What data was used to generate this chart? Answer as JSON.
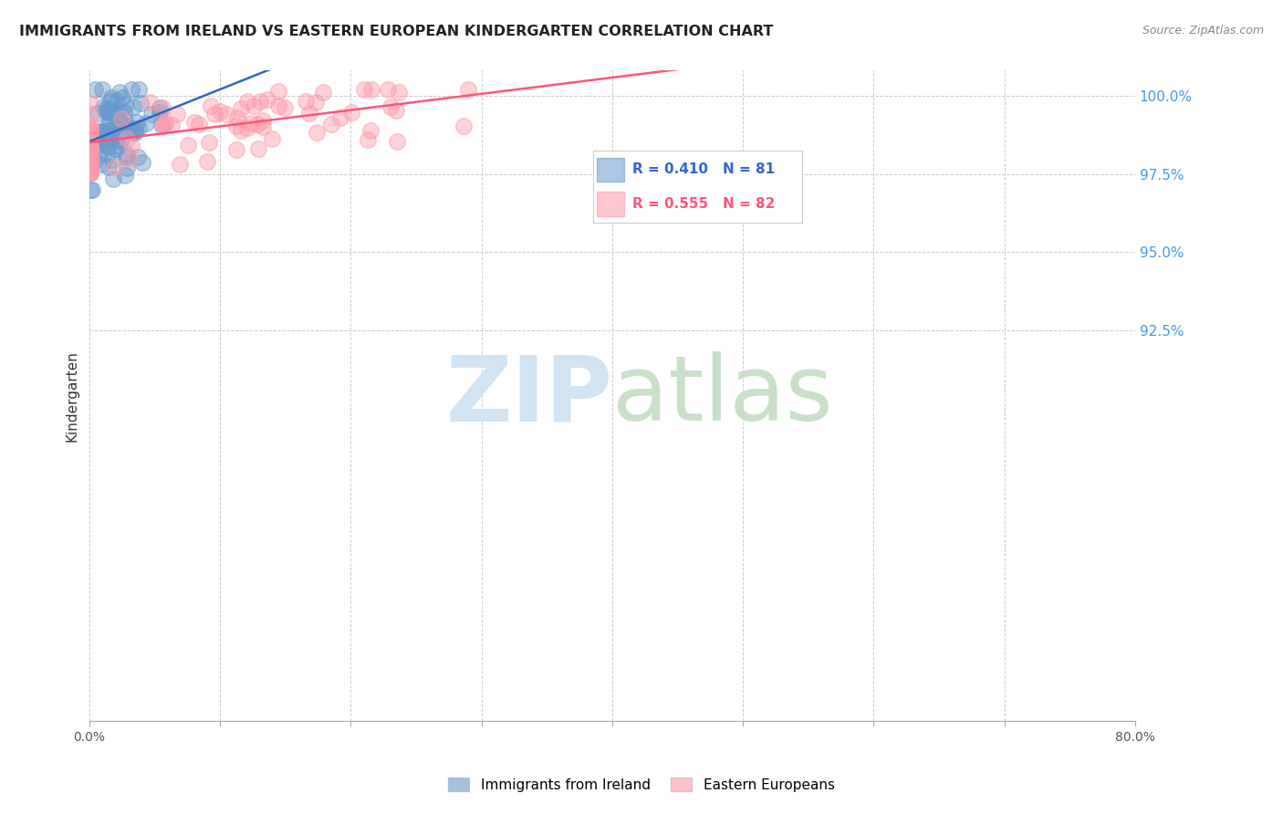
{
  "title": "IMMIGRANTS FROM IRELAND VS EASTERN EUROPEAN KINDERGARTEN CORRELATION CHART",
  "source": "Source: ZipAtlas.com",
  "ylabel": "Kindergarten",
  "yticks": [
    "100.0%",
    "97.5%",
    "95.0%",
    "92.5%"
  ],
  "ytick_vals": [
    1.0,
    0.975,
    0.95,
    0.925
  ],
  "xmin": 0.0,
  "xmax": 0.8,
  "ymin": 0.8,
  "ymax": 1.008,
  "legend_label1": "Immigrants from Ireland",
  "legend_label2": "Eastern Europeans",
  "R1": 0.41,
  "N1": 81,
  "R2": 0.555,
  "N2": 82,
  "color_blue": "#6699CC",
  "color_pink": "#FF99AA",
  "color_trendline_blue": "#3366BB",
  "color_trendline_pink": "#FF5577",
  "watermark_zip": "ZIP",
  "watermark_atlas": "atlas",
  "watermark_color_zip": "#C8DFF0",
  "watermark_color_atlas": "#C8E8D8"
}
